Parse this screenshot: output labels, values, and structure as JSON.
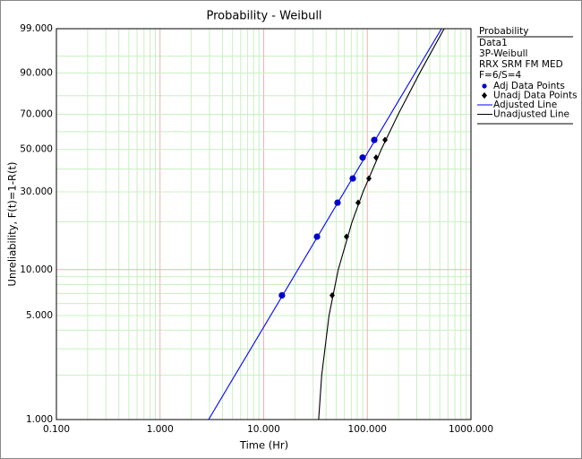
{
  "chart_data": {
    "type": "weibull-probability",
    "title": "Probability - Weibull",
    "xlabel": "Time (Hr)",
    "ylabel": "Unreliability, F(t)=1-R(t)",
    "xscale": "log",
    "yscale": "weibull",
    "xlim": [
      0.1,
      1000
    ],
    "ylim": [
      1,
      99
    ],
    "xticks": [
      {
        "value": 0.1,
        "label": "0.100"
      },
      {
        "value": 1,
        "label": "1.000"
      },
      {
        "value": 10,
        "label": "10.000"
      },
      {
        "value": 100,
        "label": "100.000"
      },
      {
        "value": 1000,
        "label": "1000.000"
      }
    ],
    "yticks": [
      {
        "value": 1,
        "label": "1.000"
      },
      {
        "value": 5,
        "label": "5.000"
      },
      {
        "value": 10,
        "label": "10.000"
      },
      {
        "value": 30,
        "label": "30.000"
      },
      {
        "value": 50,
        "label": "50.000"
      },
      {
        "value": 70,
        "label": "70.000"
      },
      {
        "value": 90,
        "label": "90.000"
      },
      {
        "value": 99,
        "label": "99.000"
      }
    ],
    "xminorticks": [
      0.2,
      0.3,
      0.4,
      0.5,
      0.6,
      0.7,
      0.8,
      0.9,
      2,
      3,
      4,
      5,
      6,
      7,
      8,
      9,
      20,
      30,
      40,
      50,
      60,
      70,
      80,
      90,
      200,
      300,
      400,
      500,
      600,
      700,
      800,
      900
    ],
    "yminorticks": [
      2,
      3,
      4,
      6,
      7,
      8,
      9,
      20,
      40,
      60,
      80,
      95
    ],
    "grid": true,
    "legend_title": "Probability",
    "legend_info": [
      "Data1",
      "3P-Weibull",
      "RRX SRM FM MED",
      "F=6/S=4"
    ],
    "series": [
      {
        "name": "Adj Data Points",
        "kind": "points",
        "marker": "circle",
        "color": "#0000cc",
        "x": [
          15.0,
          32.7,
          51.6,
          72.4,
          90.1,
          116.7
        ],
        "values": [
          6.8,
          16.2,
          26.0,
          35.6,
          45.7,
          55.3
        ]
      },
      {
        "name": "Unadj Data Points",
        "kind": "points",
        "marker": "diamond",
        "color": "#000000",
        "x": [
          45.8,
          63.0,
          81.5,
          103.5,
          121.4,
          148.2
        ],
        "values": [
          6.8,
          16.2,
          26.0,
          35.6,
          45.7,
          55.3
        ]
      },
      {
        "name": "Adjusted Line",
        "kind": "line",
        "color": "#0000ff",
        "x": [
          2.94,
          519.8
        ],
        "values": [
          1,
          99
        ]
      },
      {
        "name": "Unadjusted Line",
        "kind": "line",
        "color": "#000000",
        "x": [
          33.9,
          36.3,
          42.7,
          52.4,
          71.3,
          90.9,
          136.2,
          198.5,
          320.6,
          550.8
        ],
        "values": [
          1,
          2,
          5,
          10,
          20,
          30,
          50,
          70,
          90,
          99
        ]
      }
    ]
  }
}
